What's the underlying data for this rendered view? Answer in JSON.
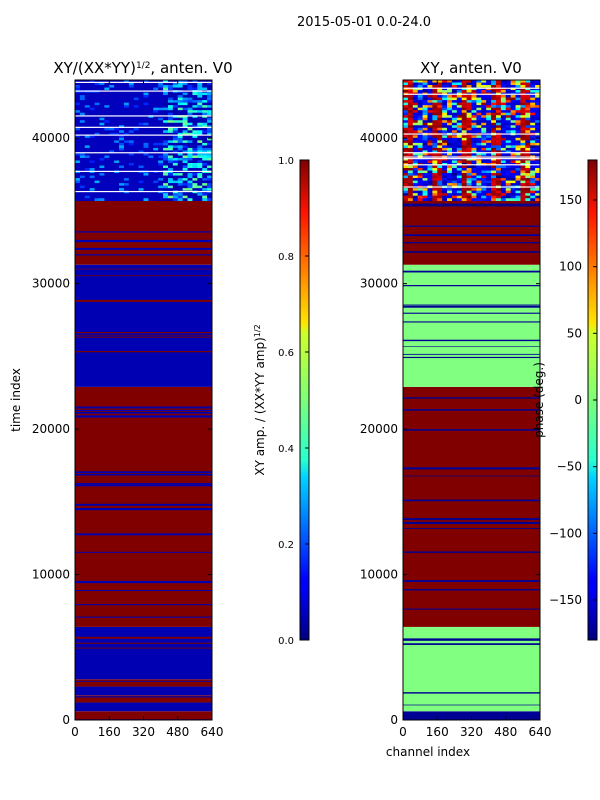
{
  "figure": {
    "suptitle": "2015-05-01 0.0-24.0"
  },
  "chart_data": [
    {
      "type": "heatmap",
      "title": "XY/(XX*YY)^1/2, anten. V0",
      "title_parts": {
        "main": "XY/(XX*YY)",
        "sup": "1/2",
        "rest": ", anten. V0"
      },
      "xlabel": "",
      "ylabel": "time index",
      "xlim": [
        0,
        640
      ],
      "ylim": [
        0,
        44000
      ],
      "xticks": [
        "0",
        "160",
        "320",
        "480",
        "640"
      ],
      "yticks": [
        "0",
        "10000",
        "20000",
        "30000",
        "40000"
      ],
      "colormap": "jet",
      "colorbar": {
        "label": "XY amp. / (XX*YY amp)^1/2",
        "label_parts": {
          "main": "XY amp. / (XX*YY amp)",
          "sup": "1/2"
        },
        "range": [
          0.0,
          1.0
        ],
        "ticks": [
          "0.0",
          "0.2",
          "0.4",
          "0.6",
          "0.8",
          "1.0"
        ]
      },
      "bands": [
        {
          "from": 0,
          "to": 600,
          "value": 1.0
        },
        {
          "from": 600,
          "to": 1200,
          "value": 0.05
        },
        {
          "from": 1200,
          "to": 1700,
          "value": 1.0
        },
        {
          "from": 1700,
          "to": 2300,
          "value": 0.05
        },
        {
          "from": 2300,
          "to": 2800,
          "value": 1.0
        },
        {
          "from": 2800,
          "to": 6400,
          "value": 0.05
        },
        {
          "from": 6400,
          "to": 22900,
          "value": 1.0
        },
        {
          "from": 22900,
          "to": 31300,
          "value": 0.05
        },
        {
          "from": 31300,
          "to": 35700,
          "value": 1.0
        },
        {
          "from": 35700,
          "to": 44000,
          "value": 0.08
        }
      ]
    },
    {
      "type": "heatmap",
      "title": "XY, anten. V0",
      "xlabel": "channel index",
      "ylabel": "",
      "xlim": [
        0,
        640
      ],
      "ylim": [
        0,
        44000
      ],
      "xticks": [
        "0",
        "160",
        "320",
        "480",
        "640"
      ],
      "yticks": [
        "0",
        "10000",
        "20000",
        "30000",
        "40000"
      ],
      "colormap": "jet",
      "colorbar": {
        "label": "phase (deg.)",
        "range": [
          -180,
          180
        ],
        "ticks": [
          "150",
          "100",
          "50",
          "0",
          "−50",
          "−100",
          "−150"
        ],
        "tick_values": [
          150,
          100,
          50,
          0,
          -50,
          -100,
          -150
        ]
      },
      "bands": [
        {
          "from": 0,
          "to": 600,
          "value": 0.02
        },
        {
          "from": 600,
          "to": 2300,
          "value": 0.5
        },
        {
          "from": 2300,
          "to": 6400,
          "value": 0.5
        },
        {
          "from": 6400,
          "to": 22900,
          "value": 1.0
        },
        {
          "from": 22900,
          "to": 31300,
          "value": 0.5
        },
        {
          "from": 31300,
          "to": 35700,
          "value": 1.0
        },
        {
          "from": 35700,
          "to": 44000,
          "value": 0.1
        }
      ]
    }
  ]
}
